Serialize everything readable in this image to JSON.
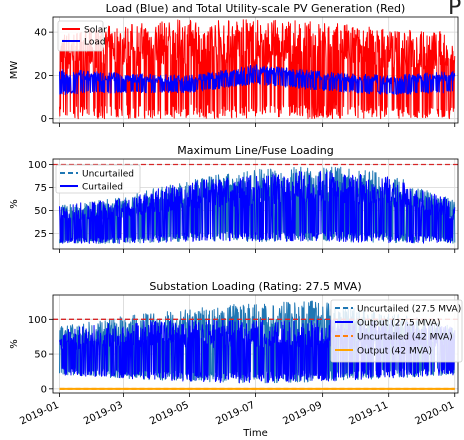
{
  "corner_text": "P",
  "x_axis": {
    "label": "Time",
    "ticks": [
      "2019-01",
      "2019-03",
      "2019-05",
      "2019-07",
      "2019-09",
      "2019-11",
      "2020-01"
    ],
    "tick_values": [
      0,
      59,
      120,
      181,
      243,
      304,
      365
    ],
    "xlim": [
      -6,
      368
    ]
  },
  "chart_data": [
    {
      "type": "line",
      "title": "Load (Blue) and Total Utility-scale PV Generation (Red)",
      "ylabel": "MW",
      "ylim": [
        -2,
        47
      ],
      "yticks": [
        0,
        20,
        40
      ],
      "grid": true,
      "legend": "top-left",
      "series": [
        {
          "name": "Solar",
          "color": "#ff0000",
          "profile": {
            "x": [
              0,
              60,
              120,
              180,
              240,
              300,
              365
            ],
            "peak": [
              40,
              44,
              46,
              46,
              45,
              42,
              40
            ],
            "base": [
              0,
              0,
              0,
              0,
              0,
              0,
              0
            ]
          }
        },
        {
          "name": "Load",
          "color": "#0000ff",
          "profile": {
            "x": [
              0,
              60,
              120,
              180,
              240,
              300,
              365
            ],
            "peak": [
              23,
              21,
              20,
              25,
              22,
              20,
              22
            ],
            "base": [
              11,
              12,
              12,
              16,
              13,
              11,
              12
            ]
          }
        }
      ],
      "reference_lines": []
    },
    {
      "type": "line",
      "title": "Maximum Line/Fuse Loading",
      "ylabel": "%",
      "ylim": [
        8,
        106
      ],
      "yticks": [
        25,
        50,
        75,
        100
      ],
      "grid": true,
      "legend": "top-left",
      "series": [
        {
          "name": "Uncurtailed",
          "color": "#1f77b4",
          "dash": true,
          "profile": {
            "x": [
              0,
              60,
              120,
              180,
              240,
              300,
              365
            ],
            "peak": [
              55,
              65,
              85,
              95,
              100,
              92,
              62
            ],
            "base": [
              14,
              14,
              16,
              16,
              16,
              15,
              14
            ]
          }
        },
        {
          "name": "Curtailed",
          "color": "#0000ff",
          "profile": {
            "x": [
              0,
              60,
              120,
              180,
              240,
              300,
              365
            ],
            "peak": [
              55,
              65,
              82,
              88,
              95,
              88,
              60
            ],
            "base": [
              14,
              14,
              16,
              16,
              16,
              15,
              14
            ]
          }
        }
      ],
      "reference_lines": [
        {
          "y": 100,
          "color": "#d62728",
          "dash": true
        }
      ]
    },
    {
      "type": "line",
      "title": "Substation Loading (Rating: 27.5 MVA)",
      "ylabel": "%",
      "ylim": [
        -6,
        135
      ],
      "yticks": [
        0,
        50,
        100
      ],
      "grid": true,
      "legend": "top-right",
      "series": [
        {
          "name": "Uncurtailed (27.5 MVA)",
          "color": "#1f77b4",
          "dash": true,
          "profile": {
            "x": [
              0,
              60,
              120,
              180,
              240,
              300,
              365
            ],
            "peak": [
              90,
              105,
              115,
              125,
              128,
              110,
              95
            ],
            "base": [
              20,
              15,
              10,
              8,
              10,
              15,
              20
            ]
          }
        },
        {
          "name": "Output (27.5 MVA)",
          "color": "#0000ff",
          "profile": {
            "x": [
              0,
              60,
              120,
              180,
              240,
              300,
              365
            ],
            "peak": [
              85,
              98,
              100,
              100,
              100,
              100,
              90
            ],
            "base": [
              20,
              15,
              10,
              8,
              10,
              15,
              20
            ]
          }
        },
        {
          "name": "Uncurtailed (42 MVA)",
          "color": "#ff7f0e",
          "dash": true,
          "profile": {
            "x": [
              0,
              365
            ],
            "peak": [
              0,
              0
            ],
            "base": [
              0,
              0
            ]
          }
        },
        {
          "name": "Output (42 MVA)",
          "color": "#ffa500",
          "profile": {
            "x": [
              0,
              365
            ],
            "peak": [
              0,
              0
            ],
            "base": [
              0,
              0
            ]
          }
        }
      ],
      "reference_lines": [
        {
          "y": 100,
          "color": "#d62728",
          "dash": true
        }
      ]
    }
  ]
}
